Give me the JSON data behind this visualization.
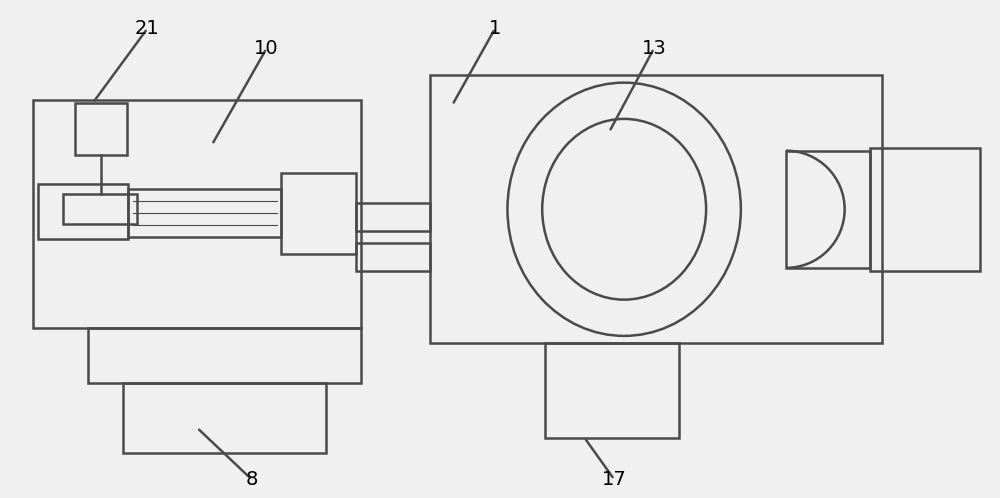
{
  "bg_color": "#f0f0f0",
  "line_color": "#4a4a4a",
  "line_width": 1.8,
  "fig_w": 10.0,
  "fig_h": 4.98
}
